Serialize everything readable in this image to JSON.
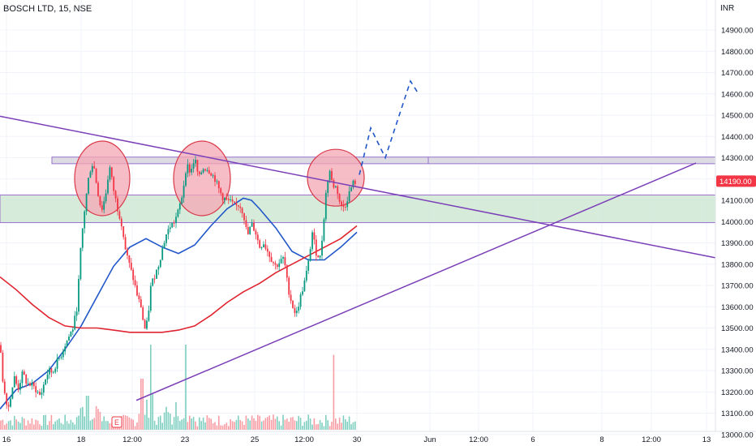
{
  "header": {
    "title": "BOSCH LTD, 15, NSE",
    "currency": "INR"
  },
  "colors": {
    "up": "#089981",
    "down": "#f23645",
    "vol_up": "#7fcfc0",
    "vol_down": "#f89ca4",
    "ma_blue": "#2157c8",
    "ma_red": "#e0242f",
    "trend": "#7b3fb8",
    "zone_fill": "#cfe8d4",
    "zone_border": "#9c6fcf",
    "resist_fill": "#d8d8df",
    "circle_fill": "#f4a7b4",
    "circle_stroke": "#d93848",
    "projection": "#2157c8",
    "badge": "#f23645"
  },
  "chart_data": {
    "type": "candlestick",
    "title": "BOSCH LTD, 15, NSE",
    "ylabel": "INR",
    "ylim": [
      12985,
      15010
    ],
    "y_ticks": [
      14900,
      14800,
      14700,
      14600,
      14500,
      14400,
      14300,
      14200,
      14100,
      14000,
      13900,
      13800,
      13700,
      13600,
      13500,
      13400,
      13300,
      13200,
      13100,
      13000
    ],
    "y_tick_labels": [
      "14900.00",
      "14800.00",
      "14700.00",
      "14600.00",
      "14500.00",
      "14400.00",
      "14300.00",
      "14200.00",
      "14100.00",
      "14000.00",
      "13900.00",
      "13800.00",
      "13700.00",
      "13600.00",
      "13500.00",
      "13400.00",
      "13300.00",
      "13200.00",
      "13100.00",
      "13000.00"
    ],
    "x_tick_labels": [
      "16",
      "18",
      "12:00",
      "23",
      "25",
      "12:00",
      "30",
      "Jun",
      "12:00",
      "6",
      "8",
      "12:00",
      "13"
    ],
    "last_price": 14190,
    "last_price_label": "14190.00",
    "earnings_marker": "E",
    "price_path": [
      [
        0,
        13420
      ],
      [
        4,
        13230
      ],
      [
        10,
        13120
      ],
      [
        14,
        13200
      ],
      [
        18,
        13270
      ],
      [
        22,
        13210
      ],
      [
        28,
        13290
      ],
      [
        33,
        13240
      ],
      [
        40,
        13230
      ],
      [
        46,
        13200
      ],
      [
        50,
        13180
      ],
      [
        55,
        13250
      ],
      [
        60,
        13300
      ],
      [
        65,
        13290
      ],
      [
        70,
        13340
      ],
      [
        75,
        13370
      ],
      [
        80,
        13420
      ],
      [
        85,
        13460
      ],
      [
        90,
        13500
      ],
      [
        95,
        13600
      ],
      [
        100,
        13900
      ],
      [
        105,
        14080
      ],
      [
        110,
        14230
      ],
      [
        115,
        14280
      ],
      [
        120,
        14150
      ],
      [
        125,
        14050
      ],
      [
        130,
        14120
      ],
      [
        135,
        14260
      ],
      [
        140,
        14150
      ],
      [
        145,
        14060
      ],
      [
        150,
        13990
      ],
      [
        155,
        13860
      ],
      [
        160,
        13790
      ],
      [
        165,
        13720
      ],
      [
        170,
        13640
      ],
      [
        174,
        13600
      ],
      [
        178,
        13490
      ],
      [
        182,
        13530
      ],
      [
        186,
        13700
      ],
      [
        190,
        13740
      ],
      [
        195,
        13790
      ],
      [
        200,
        13870
      ],
      [
        205,
        13940
      ],
      [
        210,
        13980
      ],
      [
        215,
        14000
      ],
      [
        220,
        14050
      ],
      [
        225,
        14130
      ],
      [
        230,
        14270
      ],
      [
        235,
        14230
      ],
      [
        240,
        14300
      ],
      [
        245,
        14200
      ],
      [
        250,
        14250
      ],
      [
        255,
        14250
      ],
      [
        260,
        14230
      ],
      [
        265,
        14200
      ],
      [
        270,
        14150
      ],
      [
        275,
        14110
      ],
      [
        280,
        14100
      ],
      [
        285,
        14090
      ],
      [
        290,
        14070
      ],
      [
        295,
        14080
      ],
      [
        300,
        14040
      ],
      [
        305,
        13930
      ],
      [
        310,
        13990
      ],
      [
        315,
        13950
      ],
      [
        320,
        13880
      ],
      [
        325,
        13900
      ],
      [
        330,
        13860
      ],
      [
        335,
        13820
      ],
      [
        340,
        13790
      ],
      [
        345,
        13810
      ],
      [
        350,
        13830
      ],
      [
        355,
        13690
      ],
      [
        360,
        13610
      ],
      [
        365,
        13560
      ],
      [
        370,
        13640
      ],
      [
        375,
        13710
      ],
      [
        380,
        13800
      ],
      [
        385,
        13950
      ],
      [
        390,
        13850
      ],
      [
        395,
        13830
      ],
      [
        398,
        13960
      ],
      [
        402,
        14140
      ],
      [
        406,
        14250
      ],
      [
        410,
        14170
      ],
      [
        415,
        14160
      ],
      [
        420,
        14070
      ],
      [
        425,
        14070
      ],
      [
        430,
        14130
      ],
      [
        435,
        14180
      ],
      [
        440,
        14190
      ]
    ],
    "series": [
      {
        "name": "",
        "type": "line",
        "color_key": "ma_blue",
        "points": [
          [
            0,
            13120
          ],
          [
            20,
            13210
          ],
          [
            40,
            13240
          ],
          [
            60,
            13300
          ],
          [
            80,
            13400
          ],
          [
            100,
            13510
          ],
          [
            120,
            13650
          ],
          [
            140,
            13790
          ],
          [
            160,
            13880
          ],
          [
            180,
            13920
          ],
          [
            200,
            13880
          ],
          [
            220,
            13850
          ],
          [
            240,
            13890
          ],
          [
            260,
            13980
          ],
          [
            280,
            14060
          ],
          [
            300,
            14110
          ],
          [
            310,
            14100
          ],
          [
            320,
            14060
          ],
          [
            340,
            13970
          ],
          [
            360,
            13860
          ],
          [
            380,
            13820
          ],
          [
            400,
            13820
          ],
          [
            420,
            13880
          ],
          [
            440,
            13950
          ]
        ]
      },
      {
        "name": "",
        "type": "line",
        "color_key": "ma_red",
        "points": [
          [
            0,
            13740
          ],
          [
            20,
            13680
          ],
          [
            40,
            13610
          ],
          [
            60,
            13550
          ],
          [
            80,
            13510
          ],
          [
            100,
            13500
          ],
          [
            120,
            13500
          ],
          [
            140,
            13490
          ],
          [
            160,
            13480
          ],
          [
            180,
            13480
          ],
          [
            200,
            13480
          ],
          [
            220,
            13490
          ],
          [
            240,
            13510
          ],
          [
            260,
            13560
          ],
          [
            280,
            13620
          ],
          [
            300,
            13670
          ],
          [
            320,
            13710
          ],
          [
            340,
            13760
          ],
          [
            360,
            13800
          ],
          [
            380,
            13840
          ],
          [
            400,
            13880
          ],
          [
            420,
            13920
          ],
          [
            440,
            13980
          ]
        ]
      }
    ],
    "zones": [
      {
        "name": "",
        "y1": 13995,
        "y2": 14125,
        "x1": 0,
        "x2": 882,
        "fill_key": "zone_fill"
      },
      {
        "name": "",
        "y1": 14272,
        "y2": 14303,
        "x1": 64,
        "x2": 882,
        "fill_key": "resist_fill"
      }
    ],
    "trendlines": [
      {
        "from": [
          0,
          14495
        ],
        "to": [
          882,
          13830
        ]
      },
      {
        "from": [
          168,
          13160
        ],
        "to": [
          858,
          14275
        ]
      }
    ],
    "highlights": [
      {
        "cx": 126,
        "cy": 14203,
        "rx": 34,
        "ry": 46
      },
      {
        "cx": 249,
        "cy": 14203,
        "rx": 35,
        "ry": 46
      },
      {
        "cx": 414,
        "cy": 14206,
        "rx": 35,
        "ry": 35
      }
    ],
    "projection": [
      [
        443,
        14220
      ],
      [
        457,
        14440
      ],
      [
        475,
        14300
      ],
      [
        506,
        14660
      ],
      [
        516,
        14600
      ]
    ],
    "volume_spikes": [
      [
        185,
        100
      ],
      [
        229,
        100
      ],
      [
        411,
        88
      ],
      [
        108,
        40
      ],
      [
        175,
        60
      ]
    ]
  }
}
